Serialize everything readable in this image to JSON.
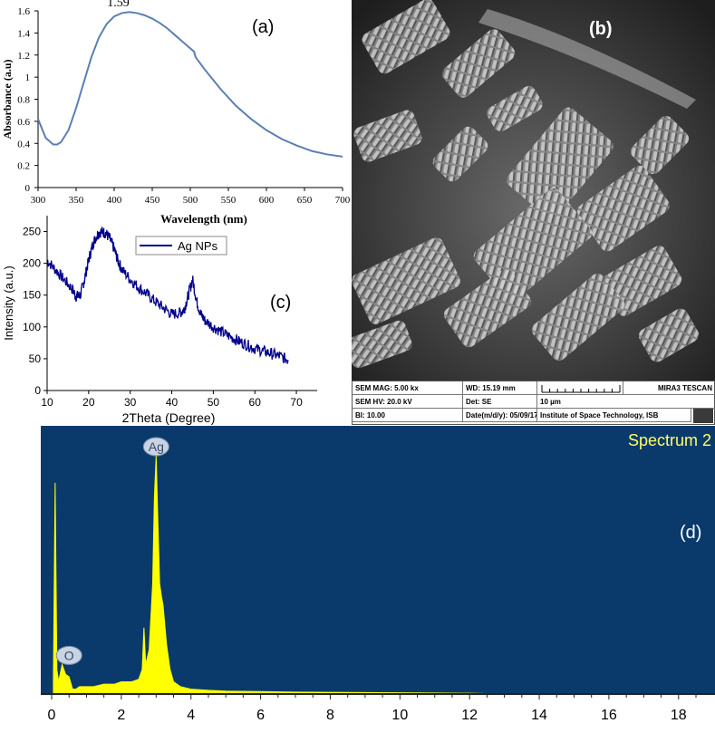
{
  "panel_labels": {
    "a": "(a)",
    "b": "(b)",
    "c": "(c)",
    "d": "(d)"
  },
  "chart_data": [
    {
      "id": "a",
      "type": "line",
      "xlabel": "Wavelength (nm)",
      "ylabel": "Absorbance (a.u)",
      "xlim": [
        300,
        700
      ],
      "ylim": [
        0,
        1.6
      ],
      "xticks": [
        "300",
        "350",
        "400",
        "450",
        "500",
        "550",
        "600",
        "650",
        "700"
      ],
      "yticks": [
        "0",
        "0.2",
        "0.4",
        "0.6",
        "0.8",
        "1",
        "1.2",
        "1.4",
        "1.6"
      ],
      "annotation": "1.59",
      "annotation_x": 422,
      "annotation_y": 1.59,
      "color": "#5b7fb5",
      "grid": false,
      "x": [
        300,
        310,
        320,
        325,
        330,
        340,
        350,
        360,
        370,
        380,
        390,
        400,
        410,
        420,
        430,
        440,
        450,
        460,
        470,
        480,
        490,
        505,
        507,
        520,
        540,
        560,
        580,
        600,
        620,
        640,
        660,
        680,
        700
      ],
      "y": [
        0.62,
        0.45,
        0.39,
        0.39,
        0.41,
        0.52,
        0.72,
        0.95,
        1.18,
        1.36,
        1.48,
        1.55,
        1.58,
        1.59,
        1.58,
        1.56,
        1.53,
        1.49,
        1.44,
        1.38,
        1.32,
        1.23,
        1.18,
        1.06,
        0.89,
        0.74,
        0.62,
        0.52,
        0.44,
        0.38,
        0.33,
        0.3,
        0.28
      ]
    },
    {
      "id": "c",
      "type": "line",
      "xlabel": "2Theta (Degree)",
      "ylabel": "Intensity (a.u.)",
      "xlim": [
        10,
        75
      ],
      "ylim": [
        0,
        275
      ],
      "xticks": [
        "10",
        "20",
        "30",
        "40",
        "50",
        "60",
        "70"
      ],
      "yticks": [
        "0",
        "50",
        "100",
        "150",
        "200",
        "250"
      ],
      "legend": "top-center",
      "grid": false,
      "series": [
        {
          "name": "Ag NPs",
          "color": "#00008b",
          "x": [
            10,
            12,
            14,
            16,
            17,
            18,
            19,
            20,
            21,
            22,
            23,
            24,
            25,
            26,
            27,
            28,
            30,
            32,
            34,
            36,
            38,
            40,
            42,
            43,
            44,
            45,
            46,
            47,
            48,
            50,
            52,
            54,
            56,
            58,
            60,
            62,
            64,
            66,
            68
          ],
          "y": [
            205,
            190,
            175,
            160,
            148,
            150,
            175,
            205,
            230,
            245,
            250,
            248,
            240,
            225,
            205,
            190,
            175,
            162,
            152,
            140,
            130,
            120,
            122,
            128,
            150,
            175,
            140,
            120,
            110,
            100,
            92,
            85,
            78,
            72,
            66,
            62,
            58,
            54,
            48
          ]
        }
      ]
    },
    {
      "id": "d",
      "type": "bar",
      "title": "Spectrum 2",
      "xlim": [
        0,
        18.5
      ],
      "xticks": [
        "0",
        "2",
        "4",
        "6",
        "8",
        "10",
        "12",
        "14",
        "16",
        "18"
      ],
      "color": "#ffff00",
      "background": "#0a3a6b",
      "peak_labels": [
        {
          "text": "Ag",
          "x": 3.0,
          "y": 1.0
        },
        {
          "text": "O",
          "x": 0.5,
          "y": 0.15
        }
      ],
      "x": [
        0.05,
        0.1,
        0.15,
        0.2,
        0.3,
        0.4,
        0.5,
        0.6,
        0.7,
        0.8,
        1.0,
        1.2,
        1.5,
        1.8,
        2.0,
        2.3,
        2.5,
        2.6,
        2.65,
        2.7,
        2.8,
        2.9,
        2.95,
        3.0,
        3.05,
        3.1,
        3.15,
        3.2,
        3.3,
        3.4,
        3.5,
        3.7,
        4.0,
        4.5,
        5.0,
        6.0,
        7.0,
        8.0,
        9.0,
        10.0,
        11.0,
        12.0,
        12.5
      ],
      "y": [
        0.05,
        0.86,
        0.1,
        0.05,
        0.12,
        0.08,
        0.07,
        0.02,
        0.02,
        0.03,
        0.03,
        0.03,
        0.04,
        0.04,
        0.05,
        0.05,
        0.06,
        0.1,
        0.27,
        0.12,
        0.18,
        0.45,
        0.8,
        0.97,
        0.7,
        0.45,
        0.4,
        0.36,
        0.2,
        0.1,
        0.05,
        0.03,
        0.02,
        0.015,
        0.012,
        0.01,
        0.008,
        0.007,
        0.006,
        0.005,
        0.004,
        0.003,
        0.002
      ]
    }
  ],
  "sem": {
    "mag": "SEM MAG: 5.00 kx",
    "wd": "WD: 15.19 mm",
    "hv": "SEM HV: 20.0 kV",
    "det": "Det: SE",
    "scale": "10 µm",
    "brand": "MIRA3 TESCAN",
    "bi": "BI: 10.00",
    "date": "Date(m/d/y): 05/09/17",
    "institute": "Institute of Space Technology, ISB"
  }
}
